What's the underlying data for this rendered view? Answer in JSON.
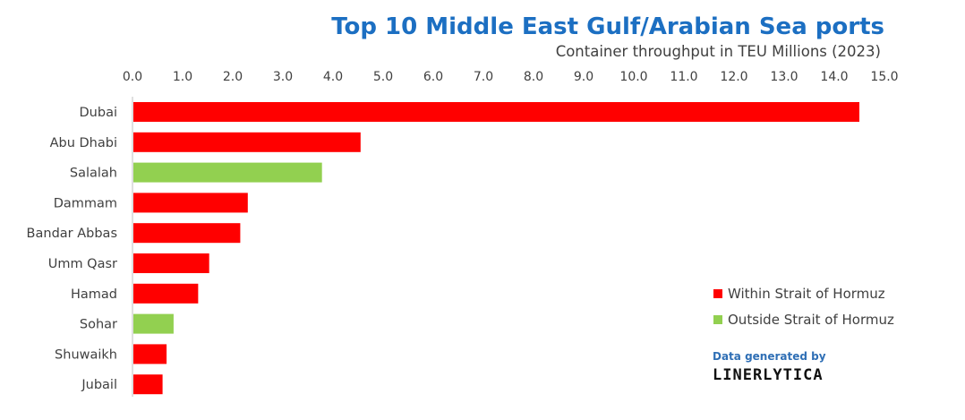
{
  "chart_data": {
    "type": "bar",
    "orientation": "horizontal",
    "title": "Top 10 Middle East Gulf/Arabian Sea ports",
    "subtitle": "Container throughput in TEU Millions (2023)",
    "xlabel": "",
    "ylabel": "",
    "xlim": [
      0,
      15
    ],
    "x_ticks": [
      "0.0",
      "1.0",
      "2.0",
      "3.0",
      "4.0",
      "5.0",
      "6.0",
      "7.0",
      "8.0",
      "9.0",
      "10.0",
      "11.0",
      "12.0",
      "13.0",
      "14.0",
      "15.0"
    ],
    "x_axis_position": "top",
    "grid": false,
    "categories": [
      "Dubai",
      "Abu Dhabi",
      "Salalah",
      "Dammam",
      "Bandar Abbas",
      "Umm Qasr",
      "Hamad",
      "Sohar",
      "Shuwaikh",
      "Jubail"
    ],
    "values": [
      14.5,
      4.55,
      3.78,
      2.3,
      2.15,
      1.53,
      1.31,
      0.82,
      0.68,
      0.6
    ],
    "groups": [
      "within",
      "within",
      "outside",
      "within",
      "within",
      "within",
      "within",
      "outside",
      "within",
      "within"
    ],
    "legend": {
      "placement": "right",
      "entries": [
        {
          "key": "within",
          "label": "Within Strait of Hormuz",
          "color": "#ff0000"
        },
        {
          "key": "outside",
          "label": "Outside Strait of Hormuz",
          "color": "#92d050"
        }
      ]
    }
  },
  "credit": {
    "line1": "Data generated by",
    "brand": "LINERLYTICA"
  }
}
